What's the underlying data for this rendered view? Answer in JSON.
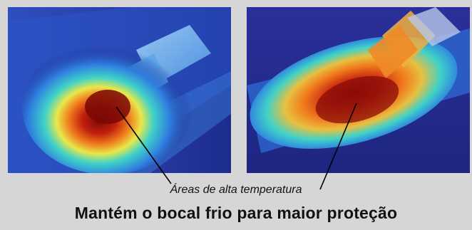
{
  "images": {
    "left": {
      "name": "thermal-image-nozzle-side-view"
    },
    "right": {
      "name": "thermal-image-nozzle-angled-view"
    }
  },
  "callout": {
    "label": "Áreas de alta temperatura"
  },
  "caption": {
    "text": "Mantém o bocal frio para maior proteção"
  },
  "colors": {
    "background": "#d6d6d6",
    "cold": "#1b2a8a",
    "cool": "#2f7fe0",
    "mid": "#3fd2c8",
    "warm": "#e8e84a",
    "hot": "#f07a1c",
    "hottest": "#8a0c08"
  }
}
